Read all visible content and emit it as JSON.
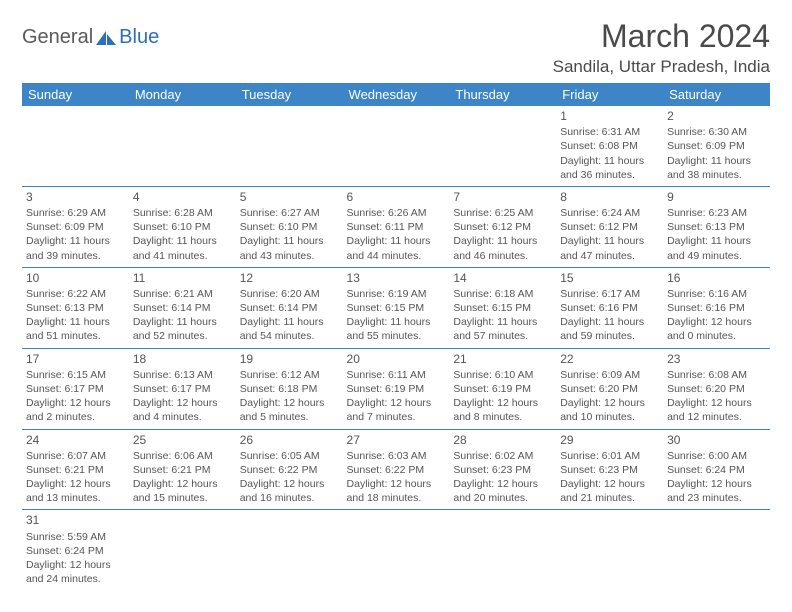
{
  "logo": {
    "part1": "General",
    "part2": "Blue"
  },
  "title": "March 2024",
  "location": "Sandila, Uttar Pradesh, India",
  "header_bg": "#3d85c6",
  "header_fg": "#ffffff",
  "body_fg": "#555555",
  "rule_color": "#3d85c6",
  "weekdays": [
    "Sunday",
    "Monday",
    "Tuesday",
    "Wednesday",
    "Thursday",
    "Friday",
    "Saturday"
  ],
  "weeks": [
    [
      null,
      null,
      null,
      null,
      null,
      {
        "d": "1",
        "sr": "6:31 AM",
        "ss": "6:08 PM",
        "dl": "11 hours and 36 minutes."
      },
      {
        "d": "2",
        "sr": "6:30 AM",
        "ss": "6:09 PM",
        "dl": "11 hours and 38 minutes."
      }
    ],
    [
      {
        "d": "3",
        "sr": "6:29 AM",
        "ss": "6:09 PM",
        "dl": "11 hours and 39 minutes."
      },
      {
        "d": "4",
        "sr": "6:28 AM",
        "ss": "6:10 PM",
        "dl": "11 hours and 41 minutes."
      },
      {
        "d": "5",
        "sr": "6:27 AM",
        "ss": "6:10 PM",
        "dl": "11 hours and 43 minutes."
      },
      {
        "d": "6",
        "sr": "6:26 AM",
        "ss": "6:11 PM",
        "dl": "11 hours and 44 minutes."
      },
      {
        "d": "7",
        "sr": "6:25 AM",
        "ss": "6:12 PM",
        "dl": "11 hours and 46 minutes."
      },
      {
        "d": "8",
        "sr": "6:24 AM",
        "ss": "6:12 PM",
        "dl": "11 hours and 47 minutes."
      },
      {
        "d": "9",
        "sr": "6:23 AM",
        "ss": "6:13 PM",
        "dl": "11 hours and 49 minutes."
      }
    ],
    [
      {
        "d": "10",
        "sr": "6:22 AM",
        "ss": "6:13 PM",
        "dl": "11 hours and 51 minutes."
      },
      {
        "d": "11",
        "sr": "6:21 AM",
        "ss": "6:14 PM",
        "dl": "11 hours and 52 minutes."
      },
      {
        "d": "12",
        "sr": "6:20 AM",
        "ss": "6:14 PM",
        "dl": "11 hours and 54 minutes."
      },
      {
        "d": "13",
        "sr": "6:19 AM",
        "ss": "6:15 PM",
        "dl": "11 hours and 55 minutes."
      },
      {
        "d": "14",
        "sr": "6:18 AM",
        "ss": "6:15 PM",
        "dl": "11 hours and 57 minutes."
      },
      {
        "d": "15",
        "sr": "6:17 AM",
        "ss": "6:16 PM",
        "dl": "11 hours and 59 minutes."
      },
      {
        "d": "16",
        "sr": "6:16 AM",
        "ss": "6:16 PM",
        "dl": "12 hours and 0 minutes."
      }
    ],
    [
      {
        "d": "17",
        "sr": "6:15 AM",
        "ss": "6:17 PM",
        "dl": "12 hours and 2 minutes."
      },
      {
        "d": "18",
        "sr": "6:13 AM",
        "ss": "6:17 PM",
        "dl": "12 hours and 4 minutes."
      },
      {
        "d": "19",
        "sr": "6:12 AM",
        "ss": "6:18 PM",
        "dl": "12 hours and 5 minutes."
      },
      {
        "d": "20",
        "sr": "6:11 AM",
        "ss": "6:19 PM",
        "dl": "12 hours and 7 minutes."
      },
      {
        "d": "21",
        "sr": "6:10 AM",
        "ss": "6:19 PM",
        "dl": "12 hours and 8 minutes."
      },
      {
        "d": "22",
        "sr": "6:09 AM",
        "ss": "6:20 PM",
        "dl": "12 hours and 10 minutes."
      },
      {
        "d": "23",
        "sr": "6:08 AM",
        "ss": "6:20 PM",
        "dl": "12 hours and 12 minutes."
      }
    ],
    [
      {
        "d": "24",
        "sr": "6:07 AM",
        "ss": "6:21 PM",
        "dl": "12 hours and 13 minutes."
      },
      {
        "d": "25",
        "sr": "6:06 AM",
        "ss": "6:21 PM",
        "dl": "12 hours and 15 minutes."
      },
      {
        "d": "26",
        "sr": "6:05 AM",
        "ss": "6:22 PM",
        "dl": "12 hours and 16 minutes."
      },
      {
        "d": "27",
        "sr": "6:03 AM",
        "ss": "6:22 PM",
        "dl": "12 hours and 18 minutes."
      },
      {
        "d": "28",
        "sr": "6:02 AM",
        "ss": "6:23 PM",
        "dl": "12 hours and 20 minutes."
      },
      {
        "d": "29",
        "sr": "6:01 AM",
        "ss": "6:23 PM",
        "dl": "12 hours and 21 minutes."
      },
      {
        "d": "30",
        "sr": "6:00 AM",
        "ss": "6:24 PM",
        "dl": "12 hours and 23 minutes."
      }
    ],
    [
      {
        "d": "31",
        "sr": "5:59 AM",
        "ss": "6:24 PM",
        "dl": "12 hours and 24 minutes."
      },
      null,
      null,
      null,
      null,
      null,
      null
    ]
  ],
  "labels": {
    "sunrise": "Sunrise: ",
    "sunset": "Sunset: ",
    "daylight": "Daylight: "
  }
}
